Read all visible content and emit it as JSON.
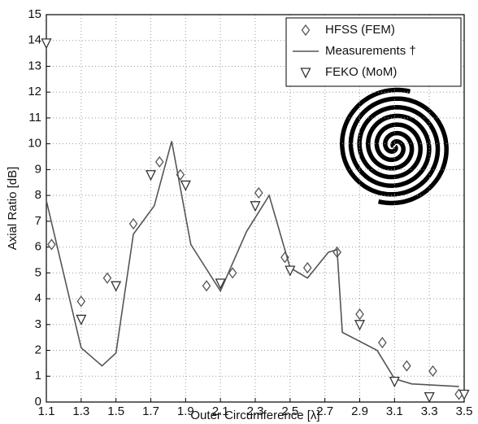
{
  "chart_data": {
    "type": "line",
    "xlabel": "Outer Circumference [λ]",
    "ylabel": "Axial Ratio [dB]",
    "xlim": [
      1.1,
      3.5
    ],
    "xticks": [
      1.1,
      1.3,
      1.5,
      1.7,
      1.9,
      2.1,
      2.3,
      2.5,
      2.7,
      2.9,
      3.1,
      3.3,
      3.5
    ],
    "ylim": [
      0,
      15
    ],
    "yticks": [
      0,
      1,
      2,
      3,
      4,
      5,
      6,
      7,
      8,
      9,
      10,
      11,
      12,
      13,
      14,
      15
    ],
    "grid": true,
    "legend": "upper right",
    "series": [
      {
        "name": "HFSS (FEM)",
        "color": "#555555",
        "marker": "diamond",
        "line": false,
        "x": [
          1.13,
          1.3,
          1.45,
          1.6,
          1.75,
          1.87,
          2.02,
          2.17,
          2.32,
          2.47,
          2.6,
          2.77,
          2.9,
          3.03,
          3.17,
          3.32,
          3.47
        ],
        "values": [
          6.1,
          3.9,
          4.8,
          6.9,
          9.3,
          8.8,
          4.5,
          5.0,
          8.1,
          5.6,
          5.2,
          5.8,
          3.4,
          2.3,
          1.4,
          1.2,
          0.3
        ]
      },
      {
        "name": "Measurements †",
        "color": "#555555",
        "marker": "none",
        "line": true,
        "x": [
          1.1,
          1.3,
          1.42,
          1.5,
          1.6,
          1.72,
          1.82,
          1.93,
          2.1,
          2.25,
          2.38,
          2.5,
          2.6,
          2.72,
          2.77,
          2.8,
          3.0,
          3.1,
          3.2,
          3.47
        ],
        "values": [
          7.8,
          2.1,
          1.4,
          1.9,
          6.5,
          7.6,
          10.1,
          6.1,
          4.3,
          6.6,
          8.0,
          5.2,
          4.8,
          5.8,
          5.9,
          2.7,
          2.0,
          0.9,
          0.7,
          0.6
        ]
      },
      {
        "name": "FEKO (MoM)",
        "color": "#333333",
        "marker": "triangle-down",
        "line": false,
        "x": [
          1.1,
          1.3,
          1.5,
          1.7,
          1.9,
          2.1,
          2.3,
          2.5,
          2.9,
          3.1,
          3.3,
          3.5
        ],
        "values": [
          13.9,
          3.2,
          4.5,
          8.8,
          8.4,
          4.6,
          7.6,
          5.1,
          3.0,
          0.8,
          0.2,
          0.3
        ]
      }
    ]
  }
}
